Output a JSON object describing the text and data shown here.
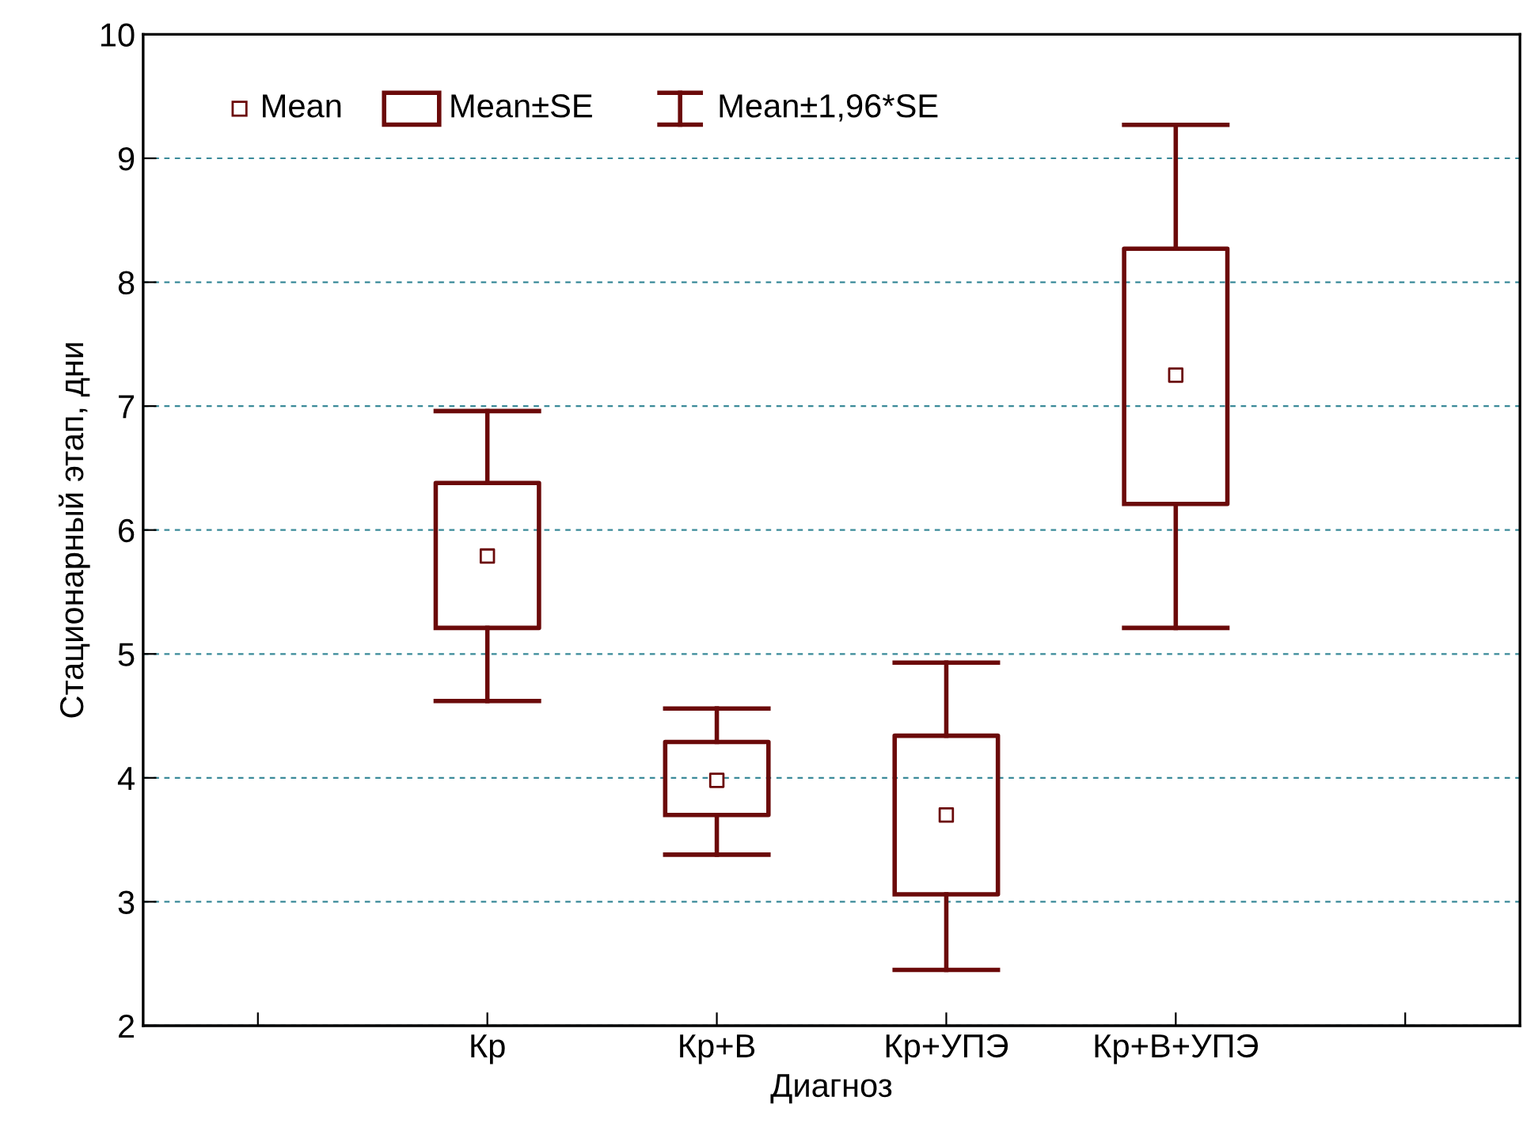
{
  "chart_data": {
    "type": "box",
    "xlabel": "Диагноз",
    "ylabel": "Стационарный этап, дни",
    "categories": [
      null,
      "Кр",
      "Кр+В",
      "Кр+УПЭ",
      "Кр+В+УПЭ",
      null
    ],
    "boxes": [
      null,
      {
        "low": 4.62,
        "q1": 5.21,
        "q3": 6.38,
        "high": 6.96,
        "mean": 5.79
      },
      {
        "low": 3.38,
        "q1": 3.7,
        "q3": 4.29,
        "high": 4.56,
        "mean": 3.98
      },
      {
        "low": 2.45,
        "q1": 3.06,
        "q3": 4.34,
        "high": 4.93,
        "mean": 3.7
      },
      {
        "low": 5.21,
        "q1": 6.21,
        "q3": 8.27,
        "high": 9.27,
        "mean": 7.25
      },
      null
    ],
    "color": "#6b0a0a",
    "ylim": [
      2,
      10
    ],
    "yticks": [
      2,
      3,
      4,
      5,
      6,
      7,
      8,
      9,
      10
    ],
    "grid": "y",
    "annotations": [
      "Mean",
      "Mean±SE",
      "Mean±1,96*SE"
    ]
  }
}
